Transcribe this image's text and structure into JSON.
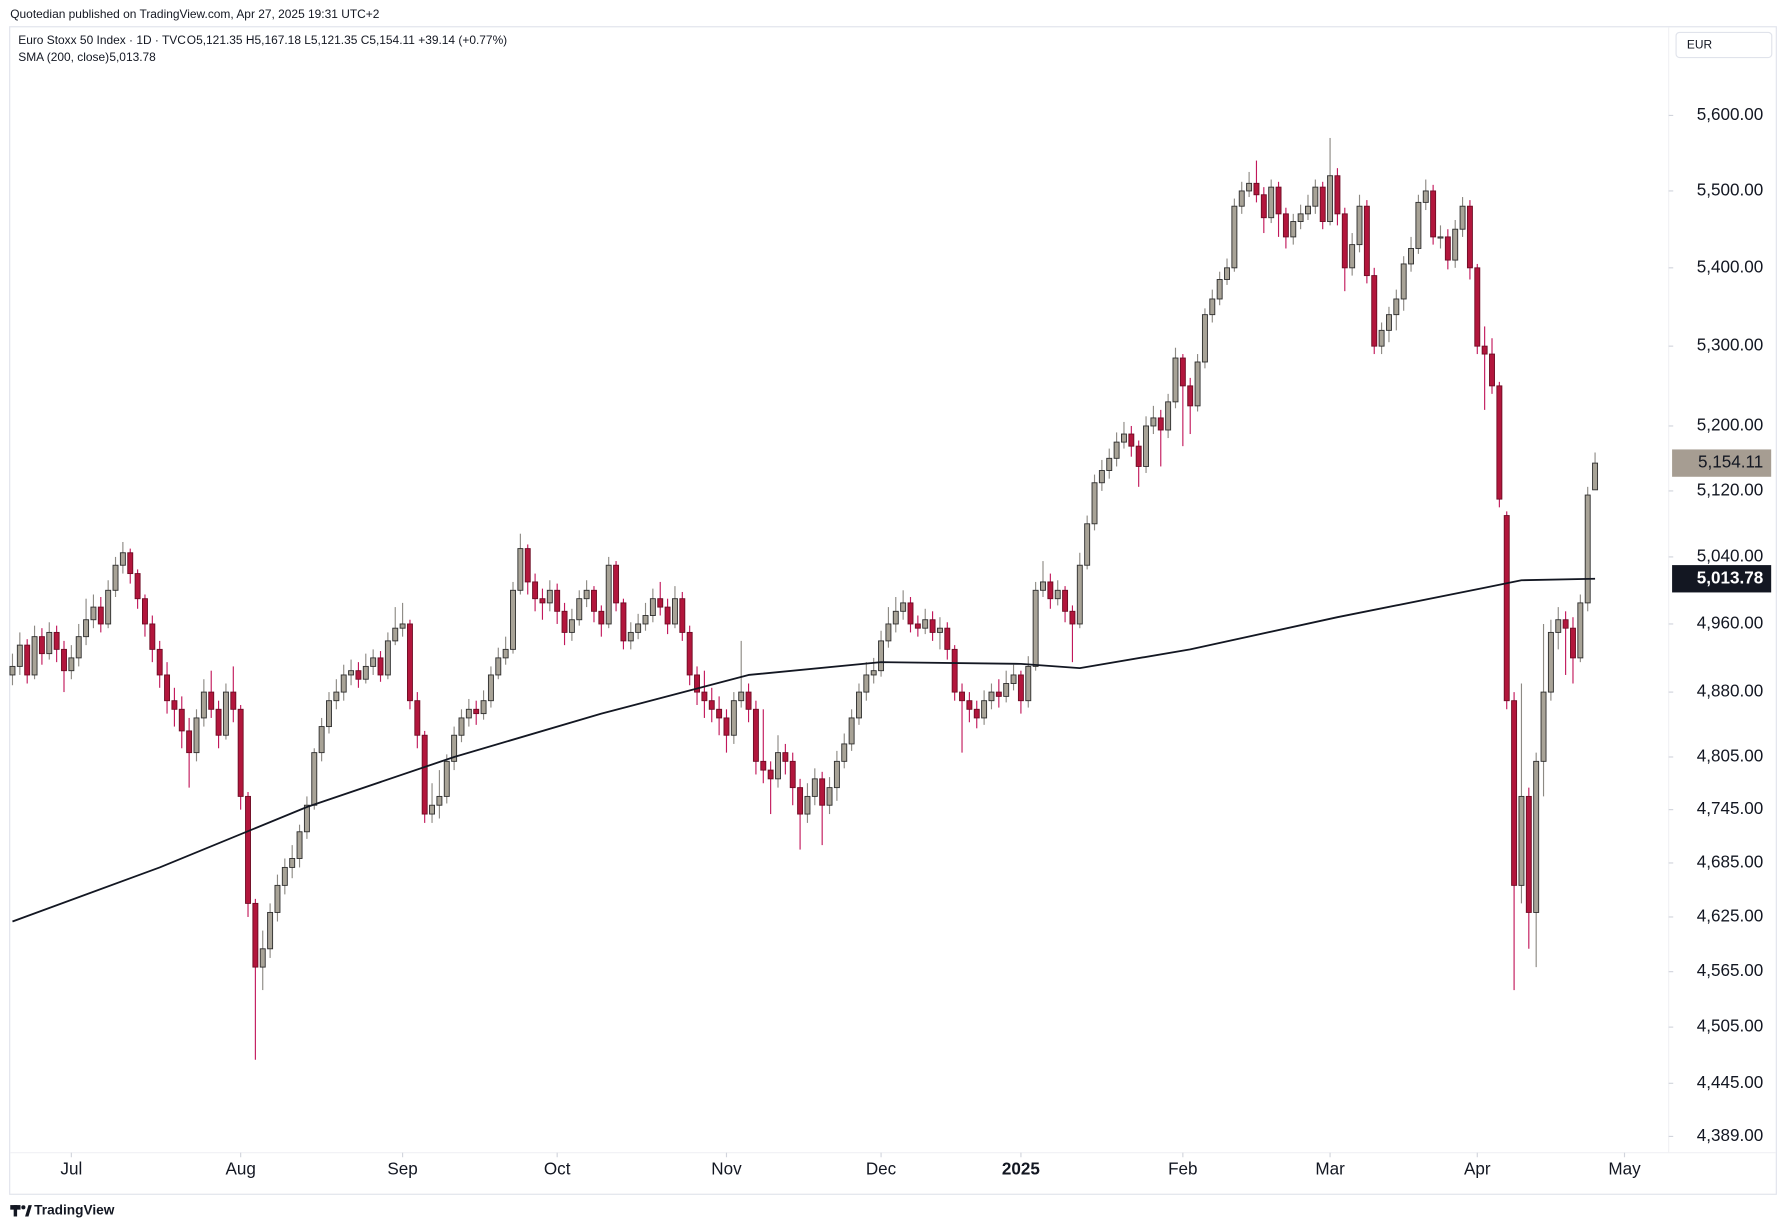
{
  "header": "Quotedian published on TradingView.com, Apr 27, 2025 19:31 UTC+2",
  "footer": "TradingView",
  "chart_data": {
    "type": "candlestick",
    "title": "Euro Stoxx 50 Index · 1D · TVC",
    "ohlc_legend": "O5,121.35 H5,167.18 L5,121.35 C5,154.11 +39.14 (+0.77%)",
    "currency": "EUR",
    "log_scale": true,
    "grid": false,
    "up_color": "#a8a397",
    "down_color": "#b2163c",
    "close_label": "5,154.11",
    "close_label_color": "#a69d92",
    "open": [
      4900,
      4910,
      4935,
      4900,
      4945,
      4925,
      4950,
      4930,
      4905,
      4920,
      4945,
      4965,
      4980,
      4960,
      5000,
      5030,
      5045,
      5020,
      4990,
      4960,
      4930,
      4900,
      4870,
      4860,
      4835,
      4810,
      4850,
      4880,
      4860,
      4830,
      4880,
      4860,
      4760,
      4640,
      4570,
      4590,
      4630,
      4660,
      4680,
      4690,
      4720,
      4750,
      4810,
      4840,
      4870,
      4880,
      4900,
      4905,
      4895,
      4910,
      4920,
      4900,
      4940,
      4955,
      4960,
      4870,
      4830,
      4740,
      4750,
      4760,
      4800,
      4830,
      4850,
      4860,
      4855,
      4870,
      4900,
      4920,
      4930,
      5000,
      5050,
      5010,
      4990,
      4985,
      5000,
      4975,
      4950,
      4965,
      4990,
      5000,
      4975,
      4960,
      5030,
      4985,
      4940,
      4950,
      4960,
      4970,
      4990,
      4980,
      4960,
      4990,
      4950,
      4900,
      4880,
      4870,
      4860,
      4850,
      4830,
      4870,
      4880,
      4860,
      4800,
      4790,
      4780,
      4810,
      4800,
      4770,
      4740,
      4760,
      4780,
      4750,
      4770,
      4800,
      4820,
      4850,
      4880,
      4900,
      4905,
      4940,
      4960,
      4975,
      4985,
      4960,
      4955,
      4965,
      4950,
      4955,
      4930,
      4880,
      4870,
      4860,
      4850,
      4870,
      4880,
      4875,
      4890,
      4900,
      4870,
      4910,
      5000,
      5010,
      4990,
      5000,
      4975,
      4960,
      5030,
      5080,
      5130,
      5145,
      5160,
      5180,
      5190,
      5175,
      5150,
      5200,
      5210,
      5195,
      5230,
      5285,
      5250,
      5225,
      5280,
      5340,
      5360,
      5385,
      5400,
      5480,
      5500,
      5510,
      5495,
      5465,
      5505,
      5470,
      5440,
      5460,
      5470,
      5480,
      5505,
      5460,
      5520,
      5470,
      5400,
      5430,
      5480,
      5390,
      5300,
      5320,
      5340,
      5360,
      5405,
      5425,
      5485,
      5500,
      5440,
      5440,
      5410,
      5450,
      5480,
      5400,
      5300,
      5290,
      5250,
      5090,
      4870,
      4660,
      4760,
      4630,
      4800,
      4880,
      4950,
      4965,
      4955,
      4920,
      4985,
      5121.35
    ],
    "high": [
      4925,
      4950,
      4942,
      4958,
      4955,
      4962,
      4958,
      4940,
      4935,
      4960,
      4990,
      4995,
      4992,
      5012,
      5040,
      5058,
      5050,
      5025,
      4995,
      4970,
      4940,
      4915,
      4885,
      4875,
      4850,
      4860,
      4895,
      4905,
      4870,
      4890,
      4910,
      4865,
      4765,
      4645,
      4610,
      4640,
      4672,
      4690,
      4705,
      4728,
      4760,
      4815,
      4850,
      4880,
      4895,
      4912,
      4918,
      4915,
      4925,
      4930,
      4928,
      4950,
      4980,
      4985,
      4965,
      4880,
      4835,
      4775,
      4790,
      4808,
      4840,
      4860,
      4872,
      4870,
      4882,
      4910,
      4932,
      4945,
      5010,
      5068,
      5055,
      5020,
      5002,
      5012,
      5008,
      4985,
      4978,
      5000,
      5012,
      5005,
      4982,
      5040,
      5035,
      4990,
      4962,
      4972,
      4985,
      5002,
      5010,
      4990,
      5005,
      4998,
      4958,
      4910,
      4905,
      4885,
      4875,
      4860,
      4880,
      4940,
      4890,
      4870,
      4860,
      4800,
      4830,
      4820,
      4810,
      4780,
      4775,
      4792,
      4788,
      4782,
      4812,
      4832,
      4860,
      4890,
      4915,
      4920,
      4952,
      4980,
      4992,
      5000,
      4992,
      4970,
      4978,
      4975,
      4968,
      4962,
      4935,
      4890,
      4880,
      4870,
      4882,
      4890,
      4895,
      4905,
      4912,
      4905,
      4922,
      5010,
      5035,
      5020,
      5012,
      5005,
      4982,
      5045,
      5090,
      5140,
      5158,
      5172,
      5192,
      5205,
      5200,
      5182,
      5212,
      5225,
      5220,
      5240,
      5298,
      5290,
      5260,
      5290,
      5348,
      5372,
      5395,
      5412,
      5490,
      5512,
      5525,
      5540,
      5505,
      5515,
      5512,
      5478,
      5470,
      5482,
      5495,
      5515,
      5512,
      5570,
      5530,
      5478,
      5445,
      5495,
      5488,
      5400,
      5330,
      5350,
      5372,
      5415,
      5440,
      5495,
      5515,
      5508,
      5455,
      5450,
      5462,
      5492,
      5488,
      5405,
      5325,
      5310,
      5255,
      5095,
      4880,
      4890,
      4770,
      4810,
      4960,
      4965,
      4980,
      4975,
      4968,
      4995,
      5125,
      5167.18
    ],
    "low": [
      4888,
      4900,
      4890,
      4895,
      4912,
      4918,
      4915,
      4880,
      4895,
      4910,
      4935,
      4955,
      4950,
      4955,
      4992,
      5020,
      5008,
      4978,
      4945,
      4915,
      4885,
      4855,
      4840,
      4815,
      4770,
      4800,
      4840,
      4850,
      4815,
      4825,
      4845,
      4745,
      4625,
      4470,
      4545,
      4580,
      4620,
      4650,
      4668,
      4680,
      4712,
      4745,
      4800,
      4832,
      4860,
      4870,
      4888,
      4885,
      4890,
      4900,
      4892,
      4895,
      4935,
      4945,
      4860,
      4815,
      4730,
      4730,
      4735,
      4752,
      4790,
      4822,
      4840,
      4842,
      4848,
      4862,
      4895,
      4912,
      4925,
      4995,
      4995,
      4975,
      4965,
      4975,
      4960,
      4935,
      4940,
      4958,
      4980,
      4962,
      4945,
      4955,
      4975,
      4930,
      4930,
      4942,
      4952,
      4962,
      4970,
      4948,
      4955,
      4940,
      4888,
      4865,
      4850,
      4845,
      4830,
      4810,
      4820,
      4862,
      4845,
      4785,
      4775,
      4740,
      4770,
      4785,
      4750,
      4700,
      4730,
      4750,
      4705,
      4740,
      4755,
      4792,
      4812,
      4842,
      4870,
      4890,
      4898,
      4932,
      4950,
      4965,
      4950,
      4945,
      4948,
      4940,
      4930,
      4918,
      4870,
      4810,
      4845,
      4838,
      4842,
      4860,
      4862,
      4868,
      4882,
      4855,
      4862,
      4905,
      4992,
      4978,
      4982,
      4962,
      4915,
      4955,
      5025,
      5072,
      5120,
      5135,
      5150,
      5172,
      5162,
      5125,
      5142,
      5190,
      5150,
      5185,
      5222,
      5175,
      5190,
      5218,
      5272,
      5330,
      5352,
      5378,
      5395,
      5470,
      5492,
      5485,
      5445,
      5458,
      5440,
      5425,
      5430,
      5450,
      5462,
      5470,
      5450,
      5455,
      5455,
      5370,
      5390,
      5420,
      5380,
      5290,
      5290,
      5305,
      5320,
      5345,
      5395,
      5418,
      5475,
      5430,
      5425,
      5398,
      5400,
      5440,
      5385,
      5290,
      5220,
      5240,
      5100,
      4860,
      4545,
      4640,
      4590,
      4570,
      4760,
      4870,
      4930,
      4900,
      4890,
      4915,
      4975,
      5121.35
    ],
    "close": [
      4910,
      4935,
      4900,
      4945,
      4925,
      4950,
      4930,
      4905,
      4920,
      4945,
      4965,
      4980,
      4960,
      5000,
      5030,
      5045,
      5020,
      4990,
      4960,
      4930,
      4900,
      4870,
      4860,
      4835,
      4810,
      4850,
      4880,
      4860,
      4830,
      4880,
      4860,
      4760,
      4640,
      4570,
      4590,
      4630,
      4660,
      4680,
      4690,
      4720,
      4750,
      4810,
      4840,
      4870,
      4880,
      4900,
      4905,
      4895,
      4910,
      4920,
      4900,
      4940,
      4955,
      4960,
      4870,
      4830,
      4740,
      4750,
      4760,
      4800,
      4830,
      4850,
      4860,
      4855,
      4870,
      4900,
      4920,
      4930,
      5000,
      5050,
      5010,
      4990,
      4985,
      5000,
      4975,
      4950,
      4965,
      4990,
      5000,
      4975,
      4960,
      5030,
      4985,
      4940,
      4950,
      4960,
      4970,
      4990,
      4980,
      4960,
      4990,
      4950,
      4900,
      4880,
      4870,
      4860,
      4850,
      4830,
      4870,
      4880,
      4860,
      4800,
      4790,
      4780,
      4810,
      4800,
      4770,
      4740,
      4760,
      4780,
      4750,
      4770,
      4800,
      4820,
      4850,
      4880,
      4900,
      4905,
      4940,
      4960,
      4975,
      4985,
      4960,
      4955,
      4965,
      4950,
      4955,
      4930,
      4880,
      4870,
      4860,
      4850,
      4870,
      4880,
      4875,
      4890,
      4900,
      4870,
      4910,
      5000,
      5010,
      4990,
      5000,
      4975,
      4960,
      5030,
      5080,
      5130,
      5145,
      5160,
      5180,
      5190,
      5175,
      5150,
      5200,
      5210,
      5195,
      5230,
      5285,
      5250,
      5225,
      5280,
      5340,
      5360,
      5385,
      5400,
      5480,
      5500,
      5510,
      5495,
      5465,
      5505,
      5470,
      5440,
      5460,
      5470,
      5480,
      5505,
      5460,
      5520,
      5470,
      5400,
      5430,
      5480,
      5390,
      5300,
      5320,
      5340,
      5360,
      5405,
      5425,
      5485,
      5500,
      5440,
      5440,
      5410,
      5450,
      5480,
      5400,
      5300,
      5290,
      5250,
      5110,
      4870,
      4660,
      4760,
      4630,
      4800,
      4880,
      4950,
      4965,
      4955,
      4920,
      4985,
      5114.97,
      5154.11
    ],
    "sma": {
      "name": "SMA (200, close)",
      "color": "#131722",
      "value_label": "5,013.78",
      "x": [
        0,
        20,
        40,
        60,
        80,
        100,
        118,
        137,
        145,
        160,
        180,
        200,
        205,
        215
      ],
      "values": [
        4620,
        4680,
        4748,
        4805,
        4855,
        4900,
        4915,
        4913,
        4908,
        4930,
        4968,
        5003,
        5012,
        5013.78
      ]
    },
    "xlim": [
      -0.3,
      225
    ],
    "xticks": [
      {
        "value": 8,
        "label": "Jul"
      },
      {
        "value": 31,
        "label": "Aug"
      },
      {
        "value": 53,
        "label": "Sep"
      },
      {
        "value": 74,
        "label": "Oct"
      },
      {
        "value": 97,
        "label": "Nov"
      },
      {
        "value": 118,
        "label": "Dec"
      },
      {
        "value": 137,
        "label": "2025"
      },
      {
        "value": 159,
        "label": "Feb"
      },
      {
        "value": 179,
        "label": "Mar"
      },
      {
        "value": 199,
        "label": "Apr"
      },
      {
        "value": 219,
        "label": "May"
      }
    ],
    "ylim": [
      4372,
      5719
    ],
    "yticks": [
      {
        "value": 5600,
        "label": "5,600.00"
      },
      {
        "value": 5500,
        "label": "5,500.00"
      },
      {
        "value": 5400,
        "label": "5,400.00"
      },
      {
        "value": 5300,
        "label": "5,300.00"
      },
      {
        "value": 5200,
        "label": "5,200.00"
      },
      {
        "value": 5120,
        "label": "5,120.00"
      },
      {
        "value": 5040,
        "label": "5,040.00"
      },
      {
        "value": 4960,
        "label": "4,960.00"
      },
      {
        "value": 4880,
        "label": "4,880.00"
      },
      {
        "value": 4805,
        "label": "4,805.00"
      },
      {
        "value": 4745,
        "label": "4,745.00"
      },
      {
        "value": 4685,
        "label": "4,685.00"
      },
      {
        "value": 4625,
        "label": "4,625.00"
      },
      {
        "value": 4565,
        "label": "4,565.00"
      },
      {
        "value": 4505,
        "label": "4,505.00"
      },
      {
        "value": 4445,
        "label": "4,445.00"
      },
      {
        "value": 4389,
        "label": "4,389.00"
      }
    ]
  }
}
